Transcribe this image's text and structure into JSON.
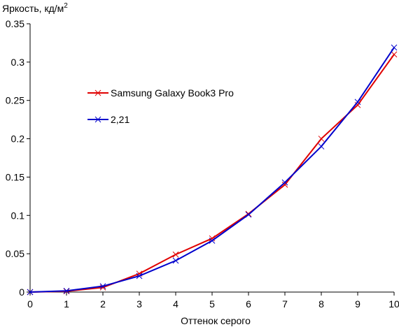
{
  "chart_data": {
    "type": "line",
    "title": "",
    "ylabel": "Яркость, кд/м",
    "ylabel_superscript": "2",
    "xlabel": "Оттенок серого",
    "xlim": [
      0,
      10
    ],
    "ylim": [
      0,
      0.35
    ],
    "x_ticks": [
      "0",
      "1",
      "2",
      "3",
      "4",
      "5",
      "6",
      "7",
      "8",
      "9",
      "10"
    ],
    "y_ticks": [
      "0",
      "0.05",
      "0.1",
      "0.15",
      "0.2",
      "0.25",
      "0.3",
      "0.35"
    ],
    "grid": false,
    "legend_placement": "left-center",
    "x": [
      0,
      1,
      2,
      3,
      4,
      5,
      6,
      7,
      8,
      9,
      10
    ],
    "series": [
      {
        "name": "Samsung Galaxy Book3 Pro",
        "color": "#e00000",
        "marker": "x",
        "values": [
          0,
          0.001,
          0.006,
          0.024,
          0.049,
          0.07,
          0.102,
          0.14,
          0.2,
          0.244,
          0.31
        ]
      },
      {
        "name": "2,21",
        "color": "#0000cc",
        "marker": "x",
        "values": [
          0,
          0.0016,
          0.0077,
          0.021,
          0.041,
          0.067,
          0.101,
          0.143,
          0.19,
          0.248,
          0.319
        ]
      }
    ]
  }
}
